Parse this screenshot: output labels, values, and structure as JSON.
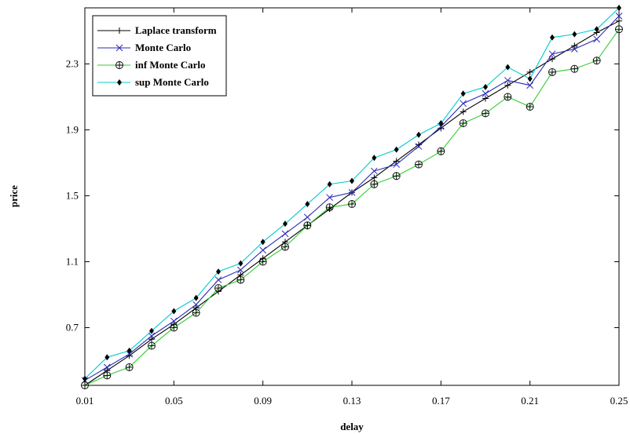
{
  "chart_data": {
    "type": "line",
    "xlabel": "delay",
    "ylabel": "price",
    "xlim": [
      0.01,
      0.25
    ],
    "ylim": [
      0.35,
      2.64
    ],
    "x_ticks": [
      "0.01",
      "0.05",
      "0.09",
      "0.13",
      "0.17",
      "0.21",
      "0.25"
    ],
    "y_ticks": [
      "0.7",
      "1.1",
      "1.5",
      "1.9",
      "2.3"
    ],
    "grid": false,
    "legend_position": "top-left",
    "x": [
      0.01,
      0.02,
      0.03,
      0.04,
      0.05,
      0.06,
      0.07,
      0.08,
      0.09,
      0.1,
      0.11,
      0.12,
      0.13,
      0.14,
      0.15,
      0.16,
      0.17,
      0.18,
      0.19,
      0.2,
      0.21,
      0.22,
      0.23,
      0.24,
      0.25
    ],
    "series": [
      {
        "name": "Laplace transform",
        "color": "#000000",
        "marker": "plus",
        "values": [
          0.35,
          0.44,
          0.53,
          0.63,
          0.72,
          0.82,
          0.92,
          1.02,
          1.12,
          1.22,
          1.32,
          1.42,
          1.52,
          1.61,
          1.71,
          1.81,
          1.91,
          2.01,
          2.09,
          2.17,
          2.25,
          2.33,
          2.41,
          2.49,
          2.56
        ]
      },
      {
        "name": "Monte Carlo",
        "color": "#2b2bb5",
        "marker": "cross",
        "values": [
          0.38,
          0.46,
          0.54,
          0.65,
          0.74,
          0.84,
          0.99,
          1.05,
          1.17,
          1.27,
          1.37,
          1.49,
          1.52,
          1.65,
          1.69,
          1.8,
          1.92,
          2.06,
          2.12,
          2.2,
          2.17,
          2.36,
          2.39,
          2.45,
          2.59
        ]
      },
      {
        "name": "inf Monte Carlo",
        "color": "#33cc33",
        "marker": "circled-plus",
        "values": [
          0.35,
          0.41,
          0.46,
          0.59,
          0.7,
          0.79,
          0.94,
          0.99,
          1.1,
          1.19,
          1.32,
          1.43,
          1.45,
          1.57,
          1.62,
          1.69,
          1.77,
          1.94,
          2.0,
          2.1,
          2.04,
          2.25,
          2.27,
          2.32,
          2.51
        ]
      },
      {
        "name": "sup Monte Carlo",
        "color": "#00cccc",
        "marker": "diamond",
        "values": [
          0.39,
          0.52,
          0.56,
          0.68,
          0.8,
          0.88,
          1.04,
          1.09,
          1.22,
          1.33,
          1.45,
          1.57,
          1.59,
          1.73,
          1.78,
          1.87,
          1.94,
          2.12,
          2.16,
          2.28,
          2.21,
          2.46,
          2.48,
          2.51,
          2.64
        ]
      }
    ]
  }
}
